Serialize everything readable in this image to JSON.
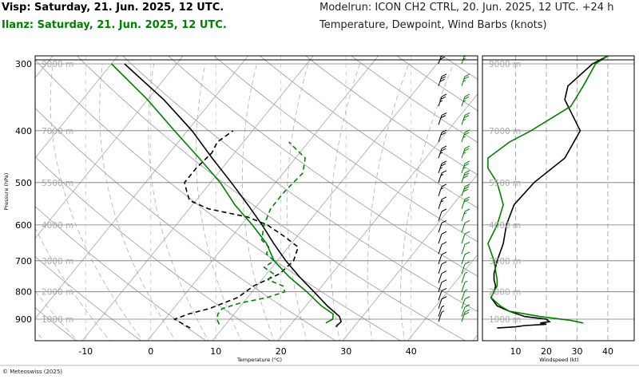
{
  "header": {
    "left_line1": "Visp: Saturday, 21. Jun. 2025, 12 UTC.",
    "left_line2": "Ilanz: Saturday, 21. Jun. 2025, 12 UTC.",
    "right_line1": "Modelrun: ICON CH2 CTRL, 20. Jun. 2025, 12 UTC. +24 h",
    "right_line2": "Temperature, Dewpoint, Wind Barbs (knots)"
  },
  "footer": {
    "copyright": "© Meteoswiss (2025)"
  },
  "colors": {
    "visp": "#000000",
    "ilanz": "#008000",
    "grid": "#999999"
  },
  "chart_data": [
    {
      "type": "line",
      "subtype": "skew-T log-p diagram",
      "xlabel": "Temperature (°C)",
      "ylabel": "Pressure (hPa)",
      "x_ticks": [
        -10,
        0,
        10,
        20,
        30,
        40
      ],
      "y_ticks": [
        300,
        400,
        500,
        600,
        700,
        800,
        900
      ],
      "height_labels": [
        {
          "p": 300,
          "label": "9000 m"
        },
        {
          "p": 400,
          "label": "7000 m"
        },
        {
          "p": 500,
          "label": "5500 m"
        },
        {
          "p": 600,
          "label": "4000 m"
        },
        {
          "p": 700,
          "label": "3000 m"
        },
        {
          "p": 800,
          "label": "2000 m"
        },
        {
          "p": 900,
          "label": "1000 m"
        }
      ],
      "series": [
        {
          "name": "Visp",
          "kind": "temperature",
          "color": "#000000",
          "points": [
            [
              930,
              27.2
            ],
            [
              910,
              27.4
            ],
            [
              890,
              26.5
            ],
            [
              850,
              23.3
            ],
            [
              800,
              19.5
            ],
            [
              750,
              15.4
            ],
            [
              700,
              11.3
            ],
            [
              650,
              7.3
            ],
            [
              600,
              3.2
            ],
            [
              550,
              -1.5
            ],
            [
              500,
              -6.8
            ],
            [
              450,
              -12.8
            ],
            [
              400,
              -19.3
            ],
            [
              350,
              -27.5
            ],
            [
              300,
              -38
            ]
          ]
        },
        {
          "name": "Visp",
          "kind": "dewpoint",
          "color": "#000000",
          "points": [
            [
              935,
              5
            ],
            [
              920,
              3.5
            ],
            [
              900,
              1.5
            ],
            [
              880,
              3
            ],
            [
              860,
              5.5
            ],
            [
              820,
              8.5
            ],
            [
              780,
              9.5
            ],
            [
              740,
              12
            ],
            [
              700,
              12.5
            ],
            [
              660,
              11.5
            ],
            [
              630,
              8
            ],
            [
              600,
              4
            ],
            [
              580,
              0
            ],
            [
              560,
              -7
            ],
            [
              540,
              -11
            ],
            [
              520,
              -12.5
            ],
            [
              500,
              -14
            ],
            [
              470,
              -14
            ],
            [
              440,
              -13.5
            ],
            [
              420,
              -14
            ],
            [
              400,
              -13
            ]
          ]
        },
        {
          "name": "Ilanz",
          "kind": "temperature",
          "color": "#008000",
          "points": [
            [
              915,
              25.2
            ],
            [
              900,
              25.8
            ],
            [
              880,
              25.2
            ],
            [
              850,
              22.4
            ],
            [
              800,
              18.4
            ],
            [
              750,
              13.8
            ],
            [
              700,
              9.5
            ],
            [
              650,
              6.2
            ],
            [
              600,
              1.7
            ],
            [
              550,
              -3.5
            ],
            [
              500,
              -8.5
            ],
            [
              450,
              -14.8
            ],
            [
              400,
              -22
            ],
            [
              350,
              -30
            ],
            [
              300,
              -40
            ]
          ]
        },
        {
          "name": "Ilanz",
          "kind": "dewpoint",
          "color": "#008000",
          "points": [
            [
              920,
              9
            ],
            [
              900,
              8
            ],
            [
              880,
              7.5
            ],
            [
              860,
              7.5
            ],
            [
              840,
              9.5
            ],
            [
              820,
              13
            ],
            [
              800,
              15
            ],
            [
              780,
              14
            ],
            [
              760,
              11
            ],
            [
              740,
              11
            ],
            [
              720,
              8.8
            ],
            [
              700,
              9.5
            ],
            [
              680,
              7.5
            ],
            [
              660,
              7
            ],
            [
              640,
              5
            ],
            [
              600,
              3.5
            ],
            [
              560,
              2.5
            ],
            [
              520,
              2.5
            ],
            [
              480,
              3
            ],
            [
              450,
              1.5
            ],
            [
              420,
              -3
            ]
          ]
        }
      ],
      "wind_barbs": {
        "pressures": [
          300,
          330,
          360,
          390,
          420,
          450,
          480,
          500,
          530,
          560,
          590,
          620,
          650,
          680,
          710,
          740,
          770,
          800,
          830,
          860,
          890,
          910
        ],
        "visp_speeds_kt": [
          30,
          30,
          25,
          20,
          20,
          25,
          25,
          15,
          15,
          15,
          10,
          10,
          10,
          10,
          10,
          10,
          10,
          10,
          10,
          10,
          5,
          5
        ],
        "ilanz_speeds_kt": [
          25,
          25,
          25,
          25,
          25,
          25,
          25,
          30,
          30,
          20,
          15,
          10,
          10,
          10,
          10,
          10,
          5,
          5,
          5,
          10,
          10,
          20
        ]
      }
    },
    {
      "type": "line",
      "subtype": "wind speed profile",
      "xlabel": "Windspeed (kt)",
      "x_ticks": [
        10,
        20,
        30,
        40
      ],
      "xlim": [
        0,
        45
      ],
      "height_labels": [
        "9000 m",
        "7000 m",
        "5500 m",
        "4000 m",
        "3000 m",
        "2000 m",
        "1000 m"
      ],
      "series": [
        {
          "name": "Visp",
          "color": "#000000",
          "points": [
            [
              935,
              4
            ],
            [
              930,
              10
            ],
            [
              925,
              13
            ],
            [
              920,
              20
            ],
            [
              915,
              18
            ],
            [
              910,
              21
            ],
            [
              900,
              20
            ],
            [
              890,
              13
            ],
            [
              870,
              8
            ],
            [
              850,
              4
            ],
            [
              820,
              2
            ],
            [
              800,
              3
            ],
            [
              780,
              3.5
            ],
            [
              760,
              3
            ],
            [
              740,
              3
            ],
            [
              700,
              4
            ],
            [
              650,
              6
            ],
            [
              600,
              7
            ],
            [
              550,
              9.5
            ],
            [
              500,
              16
            ],
            [
              450,
              26
            ],
            [
              400,
              31
            ],
            [
              350,
              26
            ],
            [
              330,
              27
            ],
            [
              300,
              35
            ],
            [
              290,
              40
            ],
            [
              285,
              43
            ]
          ]
        },
        {
          "name": "Ilanz",
          "color": "#008000",
          "points": [
            [
              915,
              32
            ],
            [
              905,
              28
            ],
            [
              890,
              18
            ],
            [
              870,
              8
            ],
            [
              850,
              5
            ],
            [
              820,
              2
            ],
            [
              800,
              3
            ],
            [
              780,
              4
            ],
            [
              760,
              4
            ],
            [
              700,
              3
            ],
            [
              650,
              1
            ],
            [
              600,
              4
            ],
            [
              550,
              6
            ],
            [
              500,
              4
            ],
            [
              470,
              1
            ],
            [
              450,
              1
            ],
            [
              420,
              8
            ],
            [
              400,
              15
            ],
            [
              360,
              28
            ],
            [
              330,
              32
            ],
            [
              300,
              36
            ],
            [
              285,
              42
            ]
          ]
        }
      ]
    }
  ]
}
